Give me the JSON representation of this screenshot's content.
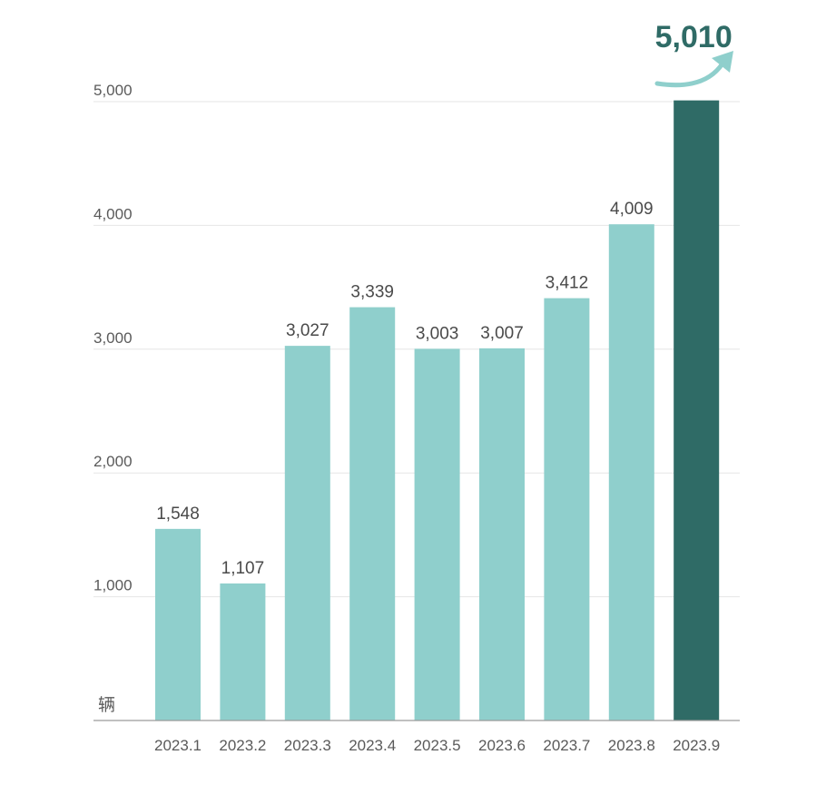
{
  "chart_data": {
    "type": "bar",
    "categories": [
      "2023.1",
      "2023.2",
      "2023.3",
      "2023.4",
      "2023.5",
      "2023.6",
      "2023.7",
      "2023.8",
      "2023.9"
    ],
    "values": [
      1548,
      1107,
      3027,
      3339,
      3003,
      3007,
      3412,
      4009,
      5010
    ],
    "data_labels": [
      "1,548",
      "1,107",
      "3,027",
      "3,339",
      "3,003",
      "3,007",
      "3,412",
      "4,009",
      "5,010"
    ],
    "yticks": [
      "1,000",
      "2,000",
      "3,000",
      "4,000",
      "5,000"
    ],
    "ytick_values": [
      1000,
      2000,
      3000,
      4000,
      5000
    ],
    "ylim": [
      0,
      5000
    ],
    "ylabel": "辆",
    "grid": true,
    "colors": {
      "bar": "#8fcfcc",
      "highlight_bar": "#2f6b66",
      "highlight_label": "#2f6b66",
      "arrow": "#8fcfcc"
    },
    "highlight_index": 8
  }
}
